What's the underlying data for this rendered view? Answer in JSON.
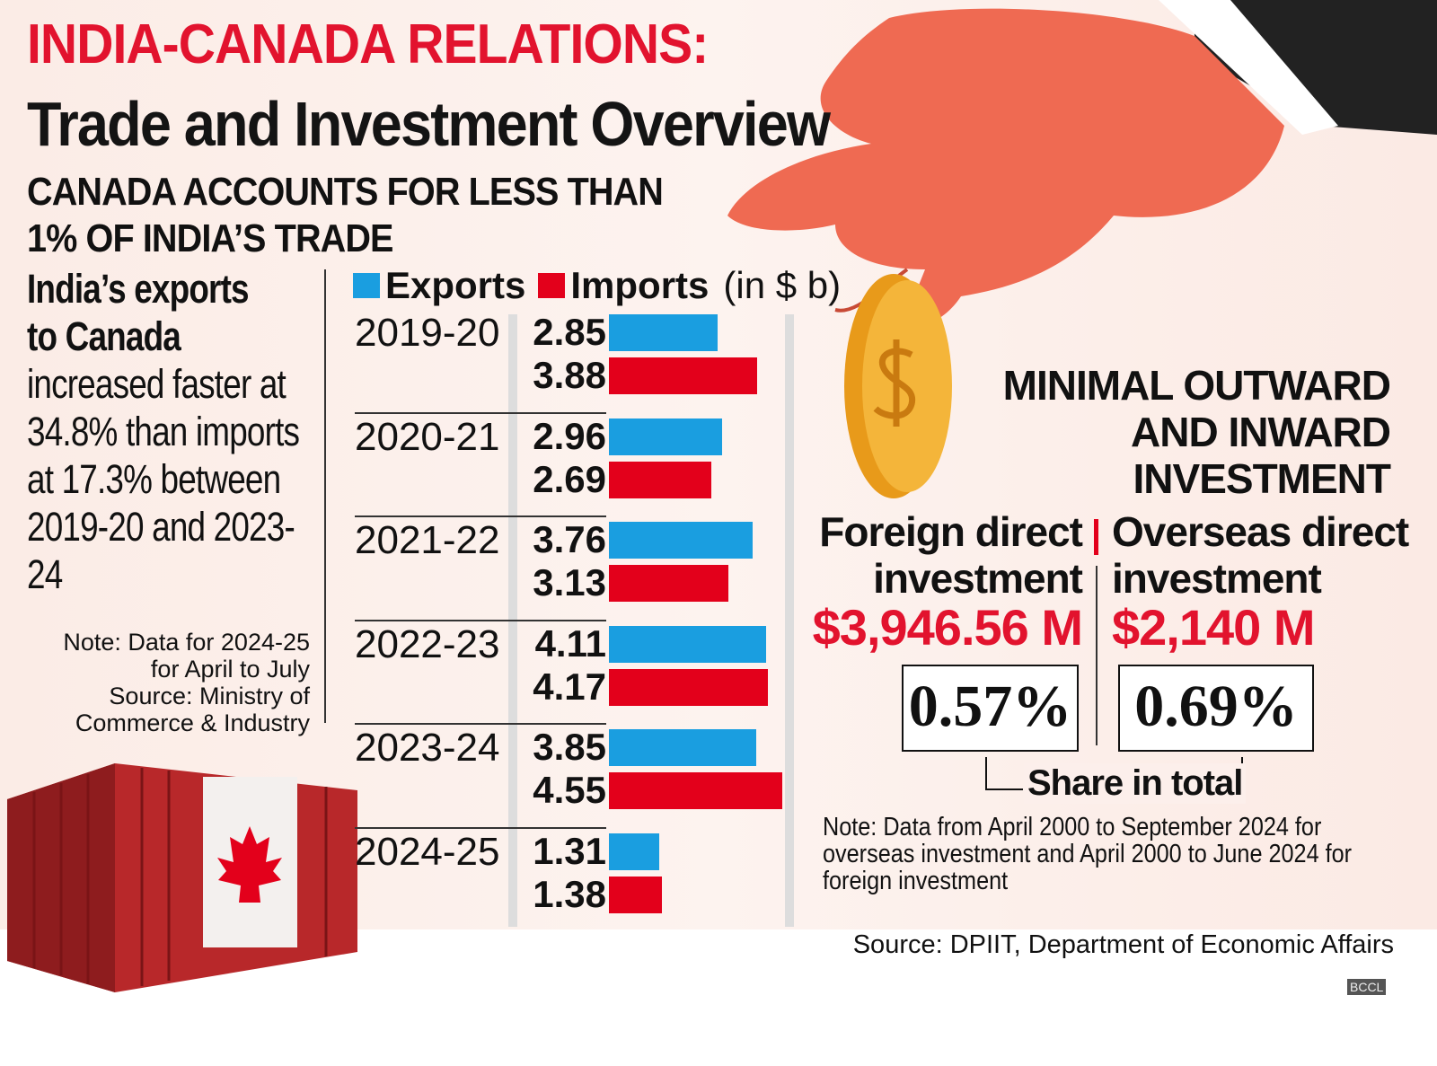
{
  "header": {
    "title_line1": "INDIA-CANADA RELATIONS:",
    "title_line2": "Trade and Investment Overview"
  },
  "trade": {
    "subtitle_line1": "CANADA ACCOUNTS FOR LESS THAN",
    "subtitle_line2": "1% OF INDIA’S TRADE",
    "summary_bold_1": "India’s exports",
    "summary_bold_2": "to Canada",
    "summary_text": "increased faster at 34.8% than imports at 17.3% between 2019-20 and 2023-24",
    "note_line1": "Note: Data for 2024-25",
    "note_line2": "for April to July",
    "note_line3": "Source: Ministry of",
    "note_line4": "Commerce & Industry"
  },
  "chart_data": {
    "type": "bar",
    "orientation": "horizontal",
    "unit": "(in $ b)",
    "categories": [
      "2019-20",
      "2020-21",
      "2021-22",
      "2022-23",
      "2023-24",
      "2024-25"
    ],
    "series": [
      {
        "name": "Exports",
        "color": "#1a9ee0",
        "values": [
          2.85,
          2.96,
          3.76,
          4.11,
          3.85,
          1.31
        ]
      },
      {
        "name": "Imports",
        "color": "#e3001b",
        "values": [
          3.88,
          2.69,
          3.13,
          4.17,
          4.55,
          1.38
        ]
      }
    ],
    "value_labels": {
      "Exports": [
        "2.85",
        "2.96",
        "3.76",
        "4.11",
        "3.85",
        "1.31"
      ],
      "Imports": [
        "3.88",
        "2.69",
        "3.13",
        "4.17",
        "4.55",
        "1.38"
      ]
    },
    "legend_placement": "top",
    "grid": false
  },
  "investment": {
    "title_line1": "MINIMAL OUTWARD",
    "title_line2": "AND INWARD",
    "title_line3": "INVESTMENT",
    "fdi_label_1": "Foreign direct",
    "fdi_label_2": "investment",
    "fdi_amount": "$3,946.56 M",
    "fdi_share": "0.57%",
    "odi_label_1": "Overseas direct",
    "odi_label_2": "investment",
    "odi_amount": "$2,140 M",
    "odi_share": "0.69%",
    "share_label": "Share in total",
    "note": "Note: Data from April 2000 to September 2024 for overseas investment and April 2000 to June 2024 for foreign investment",
    "source": "Source: DPIIT, Department of Economic Affairs"
  },
  "watermark": "BCCL",
  "colors": {
    "accent_red": "#e2132e",
    "exports_blue": "#1a9ee0",
    "imports_red": "#e3001b"
  }
}
